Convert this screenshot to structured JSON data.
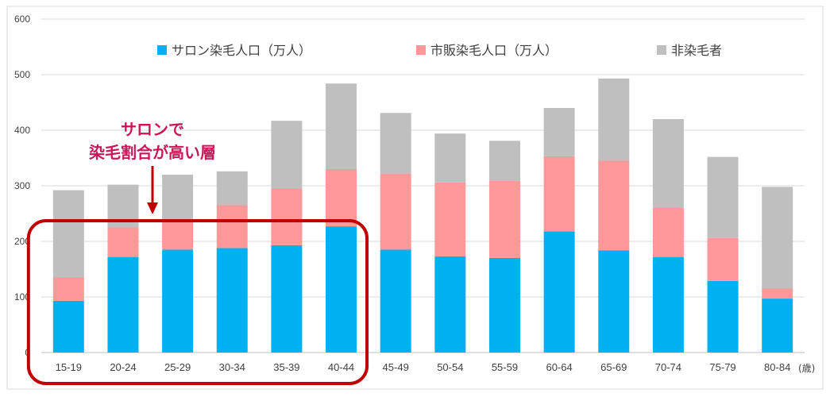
{
  "chart_data": {
    "type": "bar",
    "stacked": true,
    "categories": [
      "15-19",
      "20-24",
      "25-29",
      "30-34",
      "35-39",
      "40-44",
      "45-49",
      "50-54",
      "55-59",
      "60-64",
      "65-69",
      "70-74",
      "75-79",
      "80-84"
    ],
    "series": [
      {
        "name": "サロン染毛人口（万人）",
        "color": "#00b0f0",
        "values": [
          93,
          172,
          185,
          188,
          193,
          227,
          185,
          173,
          170,
          218,
          184,
          172,
          129,
          97
        ]
      },
      {
        "name": "市販染毛人口（万人）",
        "color": "#ff9999",
        "values": [
          42,
          53,
          50,
          77,
          102,
          103,
          137,
          133,
          139,
          135,
          161,
          88,
          77,
          18
        ]
      },
      {
        "name": "非染毛者",
        "color": "#bfbfbf",
        "values": [
          157,
          77,
          85,
          61,
          122,
          154,
          109,
          88,
          72,
          87,
          148,
          160,
          146,
          183
        ]
      }
    ],
    "ylim": [
      0,
      600
    ],
    "yticks": [
      0,
      100,
      200,
      300,
      400,
      500,
      600
    ],
    "grid": true,
    "legend_position": "top",
    "x_unit": "(歳)",
    "annotation": {
      "lines": [
        "サロンで",
        "染毛割合が高い層"
      ],
      "color": "#cc1459",
      "highlighted_categories": [
        "15-19",
        "20-24",
        "25-29",
        "30-34",
        "35-39",
        "40-44"
      ]
    },
    "highlight_box_color": "#c00000",
    "grid_color": "#d9d9d9",
    "axis_color": "#bfbfbf"
  }
}
